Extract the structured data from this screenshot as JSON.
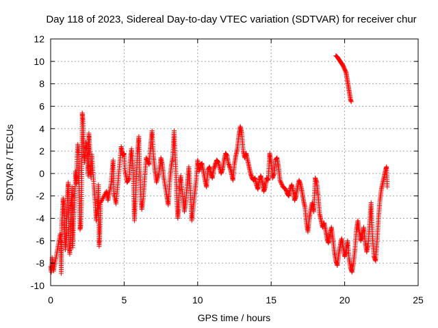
{
  "chart_data": {
    "type": "scatter",
    "title": "Day 118 of 2023, Sidereal Day-to-day VTEC variation (SDTVAR) for receiver chur",
    "xlabel": "GPS time / hours",
    "ylabel": "SDTVAR / TECUs",
    "xlim": [
      0,
      25
    ],
    "ylim": [
      -10,
      12
    ],
    "xticks": [
      0,
      5,
      10,
      15,
      20,
      25
    ],
    "yticks": [
      -10,
      -8,
      -6,
      -4,
      -2,
      0,
      2,
      4,
      6,
      8,
      10,
      12
    ],
    "grid": true,
    "marker": "+",
    "color": "#ff0000",
    "series": [
      {
        "name": "SDTVAR",
        "points": [
          [
            0.0,
            -8.3
          ],
          [
            0.05,
            -8.8
          ],
          [
            0.1,
            -7.5
          ],
          [
            0.15,
            -8.2
          ],
          [
            0.2,
            -8.7
          ],
          [
            0.65,
            -5.4
          ],
          [
            0.7,
            -6.2
          ],
          [
            0.72,
            -8.9
          ],
          [
            0.75,
            -4.6
          ],
          [
            0.8,
            -3.5
          ],
          [
            0.85,
            -2.2
          ],
          [
            0.9,
            -2.8
          ],
          [
            0.95,
            -5.0
          ],
          [
            1.0,
            -6.8
          ],
          [
            1.05,
            -5.9
          ],
          [
            1.1,
            -4.0
          ],
          [
            1.15,
            -1.6
          ],
          [
            1.2,
            -0.8
          ],
          [
            1.25,
            -6.4
          ],
          [
            1.3,
            -7.2
          ],
          [
            1.35,
            -5.2
          ],
          [
            1.4,
            -3.0
          ],
          [
            1.45,
            -1.2
          ],
          [
            1.5,
            -6.6
          ],
          [
            1.55,
            -4.6
          ],
          [
            1.6,
            -3.2
          ],
          [
            1.65,
            -1.8
          ],
          [
            1.7,
            0.2
          ],
          [
            1.75,
            -0.9
          ],
          [
            1.8,
            1.4
          ],
          [
            1.85,
            2.6
          ],
          [
            1.9,
            1.9
          ],
          [
            1.95,
            -2.0
          ],
          [
            2.0,
            -5.0
          ],
          [
            2.05,
            -4.6
          ],
          [
            2.1,
            -2.4
          ],
          [
            2.15,
            5.4
          ],
          [
            2.2,
            4.8
          ],
          [
            2.25,
            2.0
          ],
          [
            2.3,
            1.0
          ],
          [
            2.4,
            2.8
          ],
          [
            2.5,
            1.5
          ],
          [
            2.55,
            -0.2
          ],
          [
            2.6,
            3.6
          ],
          [
            2.65,
            2.6
          ],
          [
            2.7,
            0.9
          ],
          [
            2.75,
            -0.4
          ],
          [
            2.8,
            1.7
          ],
          [
            2.95,
            -1.2
          ],
          [
            3.0,
            -2.0
          ],
          [
            3.1,
            -4.2
          ],
          [
            3.2,
            -3.0
          ],
          [
            3.25,
            -1.0
          ],
          [
            3.3,
            -6.5
          ],
          [
            3.35,
            -5.2
          ],
          [
            3.4,
            -2.6
          ],
          [
            3.8,
            -1.6
          ],
          [
            3.9,
            -2.4
          ],
          [
            4.1,
            -1.0
          ],
          [
            4.25,
            1.2
          ],
          [
            4.3,
            -1.8
          ],
          [
            4.45,
            -2.7
          ],
          [
            4.8,
            2.4
          ],
          [
            4.9,
            1.6
          ],
          [
            5.0,
            1.8
          ],
          [
            5.05,
            0.3
          ],
          [
            5.2,
            -0.8
          ],
          [
            5.35,
            -0.4
          ],
          [
            5.4,
            1.0
          ],
          [
            5.5,
            2.2
          ],
          [
            5.6,
            0.6
          ],
          [
            5.7,
            -4.2
          ],
          [
            5.8,
            -1.4
          ],
          [
            5.9,
            1.8
          ],
          [
            6.0,
            3.3
          ],
          [
            6.05,
            0.5
          ],
          [
            6.1,
            -0.8
          ],
          [
            6.15,
            -2.5
          ],
          [
            6.2,
            -3.2
          ],
          [
            6.3,
            -2.2
          ],
          [
            6.4,
            -0.4
          ],
          [
            6.5,
            1.4
          ],
          [
            6.7,
            0.8
          ],
          [
            6.8,
            2.5
          ],
          [
            6.9,
            3.8
          ],
          [
            7.0,
            1.5
          ],
          [
            7.1,
            0.2
          ],
          [
            7.2,
            -0.8
          ],
          [
            7.35,
            -0.1
          ],
          [
            7.5,
            1.4
          ],
          [
            7.6,
            0.8
          ],
          [
            7.7,
            -0.4
          ],
          [
            7.9,
            -2.0
          ],
          [
            8.0,
            -2.8
          ],
          [
            8.1,
            -0.7
          ],
          [
            8.2,
            0.6
          ],
          [
            8.3,
            1.4
          ],
          [
            8.4,
            3.8
          ],
          [
            8.45,
            2.2
          ],
          [
            8.5,
            0.8
          ],
          [
            8.55,
            -1.0
          ],
          [
            8.6,
            -2.8
          ],
          [
            8.65,
            -4.0
          ],
          [
            8.7,
            -3.2
          ],
          [
            8.75,
            -1.5
          ],
          [
            8.85,
            -0.2
          ],
          [
            9.0,
            -2.2
          ],
          [
            9.1,
            -3.4
          ],
          [
            9.2,
            -2.4
          ],
          [
            9.3,
            -0.8
          ],
          [
            9.4,
            0.6
          ],
          [
            9.5,
            -1.5
          ],
          [
            9.6,
            -4.2
          ],
          [
            9.7,
            -3.0
          ],
          [
            9.8,
            -1.8
          ],
          [
            9.9,
            -0.6
          ],
          [
            10.0,
            1.2
          ],
          [
            10.1,
            0.2
          ],
          [
            10.2,
            0.8
          ],
          [
            10.3,
            0.9
          ],
          [
            10.4,
            0.1
          ],
          [
            10.5,
            -0.6
          ],
          [
            10.6,
            -1.2
          ],
          [
            10.7,
            0.3
          ],
          [
            10.8,
            0.6
          ],
          [
            10.9,
            0.0
          ],
          [
            11.0,
            -0.4
          ],
          [
            11.1,
            0.4
          ],
          [
            11.2,
            0.8
          ],
          [
            11.3,
            1.2
          ],
          [
            11.4,
            1.0
          ],
          [
            11.5,
            0.5
          ],
          [
            11.6,
            0.0
          ],
          [
            11.7,
            0.4
          ],
          [
            11.8,
            1.2
          ],
          [
            11.9,
            1.8
          ],
          [
            12.0,
            1.6
          ],
          [
            12.1,
            0.9
          ],
          [
            12.2,
            0.5
          ],
          [
            12.3,
            0.0
          ],
          [
            12.4,
            -0.6
          ],
          [
            12.5,
            0.8
          ],
          [
            12.6,
            1.6
          ],
          [
            12.7,
            2.2
          ],
          [
            12.8,
            3.4
          ],
          [
            12.9,
            4.2
          ],
          [
            13.0,
            3.6
          ],
          [
            13.1,
            2.0
          ],
          [
            13.2,
            1.4
          ],
          [
            13.3,
            1.8
          ],
          [
            13.4,
            1.2
          ],
          [
            13.5,
            0.6
          ],
          [
            13.6,
            0.0
          ],
          [
            13.7,
            -0.4
          ],
          [
            13.8,
            -0.6
          ],
          [
            13.9,
            -0.4
          ],
          [
            14.0,
            -1.0
          ],
          [
            14.1,
            -1.4
          ],
          [
            14.2,
            -0.6
          ],
          [
            14.3,
            -0.2
          ],
          [
            14.4,
            -0.8
          ],
          [
            14.5,
            -1.6
          ],
          [
            14.6,
            -1.2
          ],
          [
            14.7,
            -0.4
          ],
          [
            14.8,
            -0.6
          ],
          [
            14.9,
            1.8
          ],
          [
            15.0,
            1.0
          ],
          [
            15.1,
            -0.4
          ],
          [
            15.2,
            0.0
          ],
          [
            15.3,
            1.2
          ],
          [
            15.4,
            1.4
          ],
          [
            15.5,
            0.6
          ],
          [
            15.6,
            -0.6
          ],
          [
            15.8,
            -1.2
          ],
          [
            16.0,
            -1.4
          ],
          [
            16.1,
            -1.8
          ],
          [
            16.2,
            -2.0
          ],
          [
            16.3,
            -1.4
          ],
          [
            16.4,
            -1.0
          ],
          [
            16.5,
            -1.6
          ],
          [
            16.6,
            -2.4
          ],
          [
            16.7,
            -2.0
          ],
          [
            16.8,
            -1.2
          ],
          [
            16.9,
            -0.6
          ],
          [
            17.0,
            -1.0
          ],
          [
            17.1,
            -1.6
          ],
          [
            17.2,
            -2.4
          ],
          [
            17.3,
            -3.0
          ],
          [
            17.4,
            -4.4
          ],
          [
            17.5,
            -5.2
          ],
          [
            17.6,
            -4.0
          ],
          [
            17.7,
            -3.2
          ],
          [
            17.8,
            -2.6
          ],
          [
            17.9,
            -3.4
          ],
          [
            18.0,
            -0.4
          ],
          [
            18.1,
            -0.8
          ],
          [
            18.2,
            -2.0
          ],
          [
            18.3,
            -3.6
          ],
          [
            18.4,
            -4.2
          ],
          [
            18.5,
            -4.8
          ],
          [
            18.6,
            -4.4
          ],
          [
            18.7,
            -5.0
          ],
          [
            18.8,
            -5.8
          ],
          [
            18.9,
            -6.2
          ],
          [
            19.0,
            -5.4
          ],
          [
            19.1,
            -4.8
          ],
          [
            19.2,
            -5.8
          ],
          [
            19.3,
            -7.0
          ],
          [
            19.4,
            -7.8
          ],
          [
            19.5,
            -8.2
          ],
          [
            19.6,
            -7.2
          ],
          [
            19.7,
            -6.4
          ],
          [
            19.8,
            -5.8
          ],
          [
            19.9,
            -6.6
          ],
          [
            20.0,
            -7.4
          ],
          [
            20.1,
            -7.0
          ],
          [
            20.2,
            -6.0
          ],
          [
            20.3,
            -7.6
          ],
          [
            20.4,
            -8.4
          ],
          [
            20.5,
            -8.8
          ],
          [
            20.6,
            -8.0
          ],
          [
            20.7,
            -6.8
          ],
          [
            20.8,
            -5.0
          ],
          [
            20.9,
            -4.2
          ],
          [
            21.0,
            -5.2
          ],
          [
            21.1,
            -6.0
          ],
          [
            21.2,
            -5.6
          ],
          [
            21.3,
            -4.8
          ],
          [
            21.4,
            -6.2
          ],
          [
            21.5,
            -7.0
          ],
          [
            21.6,
            -6.4
          ],
          [
            21.7,
            -4.4
          ],
          [
            21.8,
            -2.6
          ],
          [
            21.9,
            -5.8
          ],
          [
            22.0,
            -7.4
          ],
          [
            22.1,
            -7.8
          ],
          [
            22.2,
            -6.2
          ],
          [
            22.3,
            -4.0
          ],
          [
            22.4,
            -2.4
          ],
          [
            22.5,
            -1.4
          ],
          [
            22.6,
            -0.8
          ],
          [
            22.7,
            -0.2
          ],
          [
            22.8,
            0.4
          ],
          [
            22.85,
            0.6
          ],
          [
            22.9,
            -1.2
          ],
          [
            19.4,
            10.5
          ],
          [
            19.5,
            10.4
          ],
          [
            19.6,
            10.2
          ],
          [
            19.7,
            10.0
          ],
          [
            19.8,
            9.8
          ],
          [
            19.9,
            9.6
          ],
          [
            20.0,
            9.3
          ],
          [
            20.1,
            9.0
          ],
          [
            20.15,
            8.6
          ],
          [
            20.2,
            8.2
          ],
          [
            20.25,
            7.8
          ],
          [
            20.3,
            7.4
          ],
          [
            20.35,
            7.0
          ],
          [
            20.4,
            6.6
          ],
          [
            20.45,
            6.4
          ]
        ]
      }
    ]
  }
}
